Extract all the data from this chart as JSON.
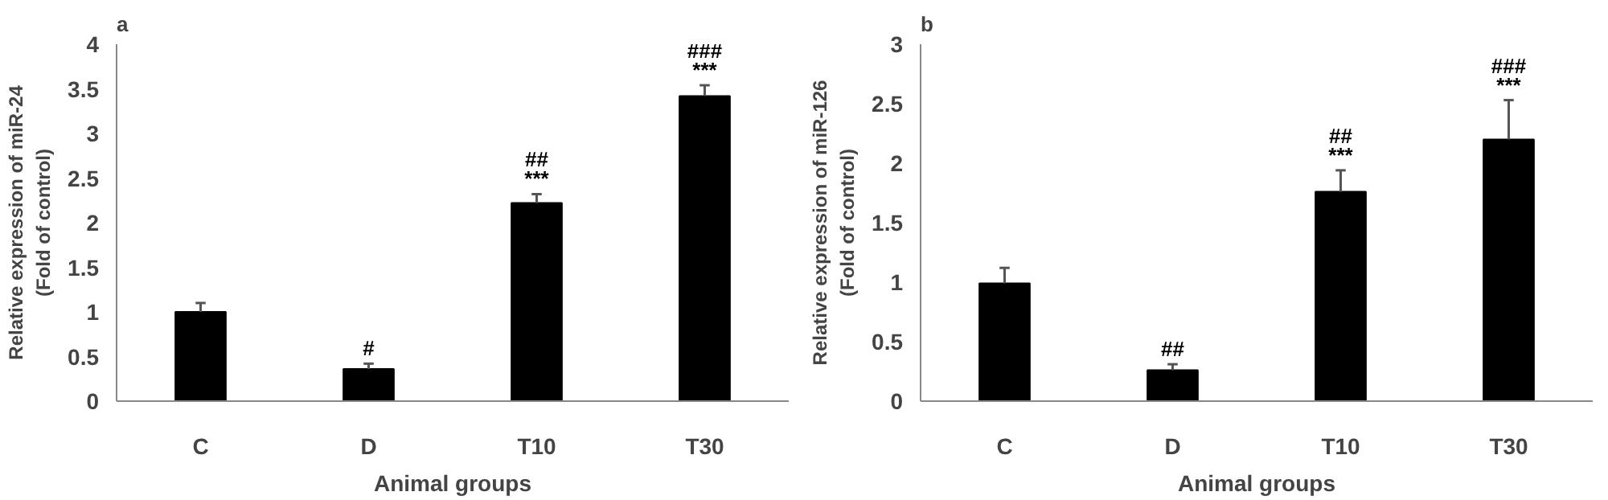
{
  "chart_data": [
    {
      "type": "bar",
      "title": "a",
      "xlabel": "Animal groups",
      "ylabel": "Relative expression of miR-24\n(Fold of control)",
      "categories": [
        "C",
        "D",
        "T10",
        "T30"
      ],
      "values": [
        1.0,
        0.36,
        2.22,
        3.42
      ],
      "color": "#000000",
      "errors": [
        [
          1.0,
          1.1
        ],
        [
          0.36,
          0.42
        ],
        [
          2.22,
          2.32
        ],
        [
          3.42,
          3.54
        ]
      ],
      "ylim": [
        0,
        4
      ],
      "yticks": [
        0,
        0.5,
        1,
        1.5,
        2,
        2.5,
        3,
        3.5,
        4
      ],
      "grid": false,
      "annotations": [
        {
          "text": "#",
          "x": "D",
          "y": 0.36
        },
        {
          "text": "##\n***",
          "x": "T10",
          "y": 2.22
        },
        {
          "text": "###\n***",
          "x": "T30",
          "y": 3.42
        }
      ]
    },
    {
      "type": "bar",
      "title": "b",
      "xlabel": "Animal groups",
      "ylabel": "Relative expression of miR-126\n(Fold of control)",
      "categories": [
        "C",
        "D",
        "T10",
        "T30"
      ],
      "values": [
        0.99,
        0.26,
        1.76,
        2.2
      ],
      "color": "#000000",
      "errors": [
        [
          0.99,
          1.12
        ],
        [
          0.26,
          0.31
        ],
        [
          1.76,
          1.94
        ],
        [
          2.2,
          2.53
        ]
      ],
      "ylim": [
        0,
        3
      ],
      "yticks": [
        0,
        0.5,
        1,
        1.5,
        2,
        2.5,
        3
      ],
      "grid": false,
      "annotations": [
        {
          "text": "##",
          "x": "D",
          "y": 0.26
        },
        {
          "text": "##\n***",
          "x": "T10",
          "y": 1.76
        },
        {
          "text": "###\n***",
          "x": "T30",
          "y": 2.2
        }
      ]
    }
  ]
}
